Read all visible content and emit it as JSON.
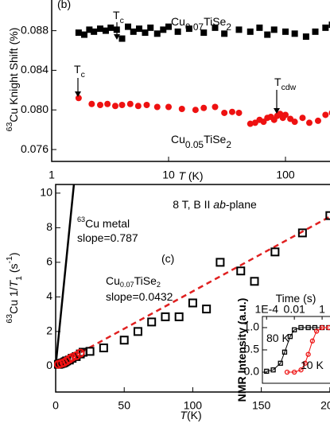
{
  "chart_data": [
    {
      "type": "scatter",
      "x_scale": "log",
      "xlim": [
        1,
        260
      ],
      "ylim": [
        0.0748,
        0.0915
      ],
      "xticks": [
        1,
        10,
        100
      ],
      "yticks": [
        0.076,
        {
          "value": 0.08,
          "label": "0.080"
        },
        0.084,
        0.088
      ],
      "xlabel": [
        {
          "text": "T",
          "style": "i"
        },
        {
          "text": " (K)"
        }
      ],
      "ylabel": [
        {
          "text": "63",
          "style": "sup"
        },
        {
          "text": "Cu Knight Shift (%)"
        }
      ],
      "series": [
        {
          "name": [
            {
              "text": "Cu"
            },
            {
              "text": "0.07",
              "style": "sub"
            },
            {
              "text": "TiSe"
            },
            {
              "text": "2",
              "style": "sub"
            }
          ],
          "marker": "square",
          "color": "#000000",
          "x": [
            1.7,
            1.9,
            2.1,
            2.3,
            2.6,
            2.9,
            3.2,
            3.6,
            4.0,
            4.5,
            5.0,
            5.6,
            6.3,
            7.0,
            8.0,
            9.0,
            10,
            12,
            15,
            20,
            25,
            30,
            40,
            50,
            60,
            70,
            80,
            100,
            120,
            150,
            180,
            220,
            250
          ],
          "values": [
            0.0878,
            0.0876,
            0.0881,
            0.0879,
            0.0882,
            0.088,
            0.0883,
            0.0881,
            0.0872,
            0.0884,
            0.0879,
            0.0882,
            0.0878,
            0.0883,
            0.0877,
            0.0881,
            0.0884,
            0.0879,
            0.0882,
            0.0878,
            0.0883,
            0.0877,
            0.0881,
            0.0879,
            0.0883,
            0.0876,
            0.0881,
            0.0879,
            0.0877,
            0.0874,
            0.0879,
            0.0883,
            0.0886
          ]
        },
        {
          "name": [
            {
              "text": "Cu"
            },
            {
              "text": "0.05",
              "style": "sub"
            },
            {
              "text": "TiSe"
            },
            {
              "text": "2",
              "style": "sub"
            }
          ],
          "marker": "circle",
          "color": "#ee1111",
          "x": [
            1.7,
            2.2,
            2.6,
            3.0,
            3.5,
            4.0,
            4.7,
            5.5,
            6.5,
            8,
            10,
            13,
            17,
            20,
            25,
            30,
            35,
            40,
            50,
            55,
            60,
            65,
            70,
            75,
            80,
            85,
            90,
            95,
            100,
            110,
            120,
            140,
            160,
            190,
            220,
            250
          ],
          "values": [
            0.0812,
            0.0806,
            0.0805,
            0.0806,
            0.0804,
            0.0805,
            0.0806,
            0.0804,
            0.0805,
            0.0803,
            0.0803,
            0.0801,
            0.08,
            0.0802,
            0.0803,
            0.0797,
            0.0798,
            0.0797,
            0.0786,
            0.0787,
            0.079,
            0.0788,
            0.0792,
            0.0793,
            0.079,
            0.0794,
            0.0796,
            0.0792,
            0.0795,
            0.0791,
            0.0788,
            0.0792,
            0.0787,
            0.0789,
            0.0795,
            0.0797
          ]
        }
      ],
      "annotations": [
        [
          {
            "text": "(b)"
          }
        ],
        [
          {
            "text": "T"
          },
          {
            "text": "c",
            "style": "sub"
          }
        ],
        [
          {
            "text": "T"
          },
          {
            "text": "c",
            "style": "sub"
          }
        ],
        [
          {
            "text": "T"
          },
          {
            "text": "cdw",
            "style": "sub"
          }
        ]
      ]
    },
    {
      "type": "scatter",
      "xlim": [
        0,
        203
      ],
      "ylim": [
        -1.5,
        10.5
      ],
      "xticks": [
        0,
        50,
        100,
        150,
        200
      ],
      "yticks": [
        0,
        2,
        4,
        6,
        8,
        10
      ],
      "xlabel": [
        {
          "text": "T",
          "style": "i"
        },
        {
          "text": "(K)"
        }
      ],
      "ylabel": [
        {
          "text": "63",
          "style": "sup"
        },
        {
          "text": "Cu 1/"
        },
        {
          "text": "T",
          "style": "i"
        },
        {
          "text": "1",
          "style": "sub"
        },
        {
          "text": " (s"
        },
        {
          "text": "-1",
          "style": "sup"
        },
        {
          "text": ")"
        }
      ],
      "series": [
        {
          "marker": "square",
          "color": "#000000",
          "x": [
            2,
            3,
            4,
            5,
            6,
            7,
            8,
            10,
            12,
            15,
            18,
            20,
            25,
            35,
            50,
            60,
            70,
            80,
            90,
            100,
            110,
            120,
            135,
            145,
            160,
            180,
            200
          ],
          "values": [
            0.1,
            0.12,
            0.15,
            0.17,
            0.2,
            0.25,
            0.3,
            0.35,
            0.45,
            0.55,
            0.7,
            0.8,
            0.85,
            1.05,
            1.5,
            2.0,
            2.55,
            2.85,
            2.85,
            3.65,
            3.3,
            6.0,
            5.5,
            4.9,
            6.6,
            7.7,
            8.7
          ]
        },
        {
          "marker": "circle",
          "color": "#ee1111",
          "x": [
            2,
            4,
            6,
            8,
            10,
            12,
            15,
            18
          ],
          "values": [
            0.1,
            0.15,
            0.2,
            0.3,
            0.4,
            0.5,
            0.6,
            0.75
          ]
        }
      ],
      "fits": [
        {
          "color": "#000000",
          "x": [
            0,
            13.3
          ],
          "values": [
            0,
            10.5
          ]
        },
        {
          "color": "#e02020",
          "dashed": true,
          "x": [
            0,
            203
          ],
          "values": [
            0,
            8.77
          ]
        }
      ],
      "annotations": [
        [
          {
            "text": "8 T, B II "
          },
          {
            "text": "ab",
            "style": "i"
          },
          {
            "text": "-plane"
          }
        ],
        [
          {
            "text": "63",
            "style": "sup"
          },
          {
            "text": "Cu metal"
          }
        ],
        [
          {
            "text": "slope=0.787"
          }
        ],
        [
          {
            "text": "(c)"
          }
        ],
        [
          {
            "text": "Cu"
          },
          {
            "text": "0.07",
            "style": "sub"
          },
          {
            "text": "TiSe"
          },
          {
            "text": "2",
            "style": "sub"
          }
        ],
        [
          {
            "text": "slope=0.0432"
          }
        ]
      ]
    },
    {
      "type": "line",
      "x_scale": "log",
      "xlim": [
        5e-05,
        5.5
      ],
      "ylim": [
        -0.25,
        1.25
      ],
      "xticks": [
        {
          "value": 0.0001,
          "label": "1E-4"
        },
        0.01,
        1
      ],
      "yticks": [
        {
          "value": 0,
          "label": "0.0"
        },
        0.5,
        {
          "value": 1,
          "label": "1.0"
        }
      ],
      "xlabel": [
        {
          "text": "Time (s)"
        }
      ],
      "ylabel": [
        {
          "text": "NMR Intensity (a.u.)"
        }
      ],
      "series": [
        {
          "name": [
            {
              "text": "80 K"
            }
          ],
          "marker": "square",
          "color": "#000000",
          "x": [
            0.0001,
            0.0003,
            0.001,
            0.002,
            0.005,
            0.01,
            0.03,
            0.1,
            0.3,
            1,
            3
          ],
          "values": [
            0.02,
            0.05,
            0.2,
            0.45,
            0.8,
            0.95,
            1.0,
            1.0,
            1.0,
            1.0,
            1.0
          ]
        },
        {
          "name": [
            {
              "text": "10 K"
            }
          ],
          "marker": "circle",
          "color": "#ee1111",
          "x": [
            0.003,
            0.01,
            0.03,
            0.06,
            0.1,
            0.2,
            0.4,
            1,
            3
          ],
          "values": [
            0.0,
            0.0,
            0.05,
            0.2,
            0.4,
            0.7,
            0.92,
            1.0,
            1.0
          ]
        }
      ]
    }
  ]
}
